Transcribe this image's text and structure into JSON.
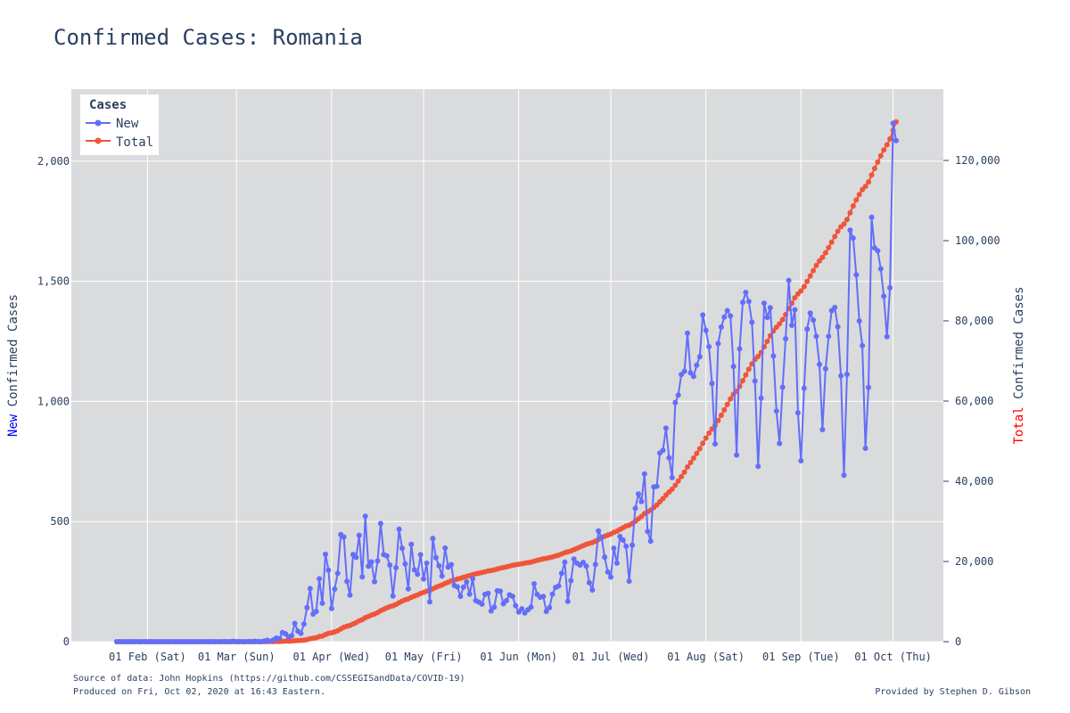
{
  "chart_data": {
    "type": "line",
    "title": "Confirmed Cases: Romania",
    "y_left_label": {
      "highlight": "New",
      "rest": " Confirmed Cases",
      "highlight_color": "#0000ff"
    },
    "y_right_label": {
      "highlight": "Total",
      "rest": " Confirmed Cases",
      "highlight_color": "#ff0000"
    },
    "x_range": [
      "2020-01-22",
      "2020-10-02"
    ],
    "x_ticks": [
      {
        "date": "2020-02-01",
        "label": "01 Feb (Sat)"
      },
      {
        "date": "2020-03-01",
        "label": "01 Mar (Sun)"
      },
      {
        "date": "2020-04-01",
        "label": "01 Apr (Wed)"
      },
      {
        "date": "2020-05-01",
        "label": "01 May (Fri)"
      },
      {
        "date": "2020-06-01",
        "label": "01 Jun (Mon)"
      },
      {
        "date": "2020-07-01",
        "label": "01 Jul (Wed)"
      },
      {
        "date": "2020-08-01",
        "label": "01 Aug (Sat)"
      },
      {
        "date": "2020-09-01",
        "label": "01 Sep (Tue)"
      },
      {
        "date": "2020-10-01",
        "label": "01 Oct (Thu)"
      }
    ],
    "y_left_range": [
      0,
      2300
    ],
    "y_left_ticks": [
      {
        "value": 0,
        "label": "0"
      },
      {
        "value": 500,
        "label": "500"
      },
      {
        "value": 1000,
        "label": "1,000"
      },
      {
        "value": 1500,
        "label": "1,500"
      },
      {
        "value": 2000,
        "label": "2,000"
      }
    ],
    "y_right_range": [
      0,
      137777
    ],
    "y_right_ticks": [
      {
        "value": 0,
        "label": "0"
      },
      {
        "value": 20000,
        "label": "20,000"
      },
      {
        "value": 40000,
        "label": "40,000"
      },
      {
        "value": 60000,
        "label": "60,000"
      },
      {
        "value": 80000,
        "label": "80,000"
      },
      {
        "value": 100000,
        "label": "100,000"
      },
      {
        "value": 120000,
        "label": "120,000"
      }
    ],
    "legend": {
      "title": "Cases",
      "position": "top-left"
    },
    "series": [
      {
        "name": "New",
        "axis": "left",
        "color": "#636efa",
        "start_date": "2020-01-22",
        "values": [
          0,
          0,
          0,
          0,
          0,
          0,
          0,
          0,
          0,
          0,
          0,
          0,
          0,
          0,
          0,
          0,
          0,
          0,
          0,
          0,
          0,
          0,
          0,
          0,
          0,
          0,
          0,
          0,
          0,
          0,
          0,
          0,
          0,
          0,
          0,
          1,
          0,
          0,
          2,
          0,
          0,
          0,
          0,
          1,
          0,
          2,
          1,
          0,
          3,
          6,
          2,
          7,
          15,
          13,
          38,
          33,
          20,
          25,
          76,
          44,
          35,
          73,
          142,
          221,
          115,
          126,
          262,
          160,
          364,
          298,
          138,
          219,
          285,
          446,
          436,
          251,
          194,
          363,
          351,
          443,
          270,
          522,
          314,
          332,
          250,
          336,
          492,
          363,
          357,
          319,
          190,
          308,
          468,
          389,
          324,
          220,
          405,
          299,
          281,
          362,
          261,
          327,
          166,
          430,
          350,
          316,
          273,
          390,
          311,
          321,
          234,
          228,
          189,
          227,
          249,
          198,
          262,
          171,
          165,
          156,
          197,
          201,
          128,
          144,
          212,
          210,
          158,
          171,
          195,
          189,
          150,
          124,
          137,
          120,
          133,
          144,
          241,
          197,
          185,
          188,
          126,
          142,
          198,
          226,
          232,
          285,
          331,
          168,
          254,
          344,
          327,
          319,
          330,
          315,
          246,
          215,
          322,
          461,
          434,
          352,
          290,
          269,
          389,
          327,
          438,
          423,
          397,
          252,
          402,
          555,
          615,
          583,
          698,
          459,
          419,
          644,
          647,
          785,
          797,
          889,
          765,
          683,
          995,
          1027,
          1112,
          1126,
          1284,
          1119,
          1104,
          1151,
          1186,
          1360,
          1296,
          1228,
          1075,
          823,
          1241,
          1310,
          1351,
          1378,
          1356,
          1146,
          777,
          1219,
          1413,
          1454,
          1416,
          1330,
          1085,
          730,
          1014,
          1409,
          1350,
          1390,
          1189,
          960,
          825,
          1059,
          1261,
          1504,
          1317,
          1382,
          953,
          753,
          1055,
          1301,
          1368,
          1339,
          1271,
          1154,
          883,
          1136,
          1271,
          1378,
          1391,
          1311,
          1107,
          693,
          1113,
          1713,
          1680,
          1527,
          1335,
          1232,
          805,
          1058,
          1767,
          1639,
          1627,
          1552,
          1438,
          1270,
          1473,
          2158,
          2086
        ]
      },
      {
        "name": "Total",
        "axis": "right",
        "color": "#ef553b",
        "start_date": "2020-01-22",
        "values": [
          0,
          0,
          0,
          0,
          0,
          0,
          0,
          0,
          0,
          0,
          0,
          0,
          0,
          0,
          0,
          0,
          0,
          0,
          0,
          0,
          0,
          0,
          0,
          0,
          0,
          0,
          0,
          0,
          0,
          0,
          0,
          0,
          0,
          0,
          0,
          1,
          1,
          1,
          3,
          3,
          3,
          3,
          3,
          4,
          4,
          6,
          7,
          7,
          10,
          16,
          18,
          25,
          40,
          53,
          91,
          124,
          144,
          169,
          245,
          289,
          324,
          397,
          539,
          760,
          875,
          1001,
          1263,
          1423,
          1787,
          2085,
          2223,
          2442,
          2727,
          3173,
          3609,
          3860,
          4054,
          4417,
          4768,
          5211,
          5481,
          6003,
          6317,
          6649,
          6899,
          7235,
          7727,
          8090,
          8447,
          8766,
          8956,
          9264,
          9732,
          10121,
          10445,
          10665,
          11070,
          11369,
          11650,
          12012,
          12273,
          12600,
          12766,
          13196,
          13546,
          13862,
          14135,
          14525,
          14836,
          15157,
          15391,
          15619,
          15808,
          16035,
          16284,
          16482,
          16744,
          16915,
          17080,
          17236,
          17433,
          17634,
          17762,
          17906,
          18118,
          18328,
          18486,
          18657,
          18852,
          19041,
          19191,
          19315,
          19452,
          19572,
          19705,
          19849,
          20090,
          20287,
          20472,
          20660,
          20786,
          20928,
          21126,
          21352,
          21584,
          21869,
          22200,
          22368,
          22622,
          22966,
          23293,
          23612,
          23942,
          24257,
          24503,
          24718,
          25040,
          25501,
          25935,
          26287,
          26577,
          26846,
          27235,
          27562,
          28000,
          28423,
          28820,
          29072,
          29474,
          30029,
          30644,
          31227,
          31925,
          32384,
          32803,
          33447,
          34094,
          34879,
          35676,
          36565,
          37330,
          38013,
          39008,
          40035,
          41147,
          42273,
          43557,
          44676,
          45780,
          46931,
          48117,
          49477,
          50773,
          52001,
          53076,
          53899,
          55140,
          56450,
          57801,
          59179,
          60535,
          61681,
          62458,
          63677,
          65090,
          66544,
          67960,
          69290,
          70375,
          71105,
          72119,
          73528,
          74878,
          76268,
          77457,
          78417,
          79242,
          80301,
          81562,
          83066,
          84383,
          85765,
          86718,
          87471,
          88526,
          89827,
          91195,
          92534,
          93805,
          94959,
          95842,
          96978,
          98249,
          99627,
          101018,
          102329,
          103436,
          104129,
          105242,
          106955,
          108635,
          110162,
          111497,
          112729,
          113534,
          114592,
          116359,
          117998,
          119625,
          121177,
          122615,
          123885,
          125358,
          127516,
          129602
        ]
      }
    ]
  },
  "footer": {
    "source": "Source of data: John Hopkins (https://github.com/CSSEGISandData/COVID-19)",
    "produced": "Produced on Fri, Oct 02, 2020 at 16:43 Eastern.",
    "credit": "Provided by Stephen D. Gibson"
  }
}
